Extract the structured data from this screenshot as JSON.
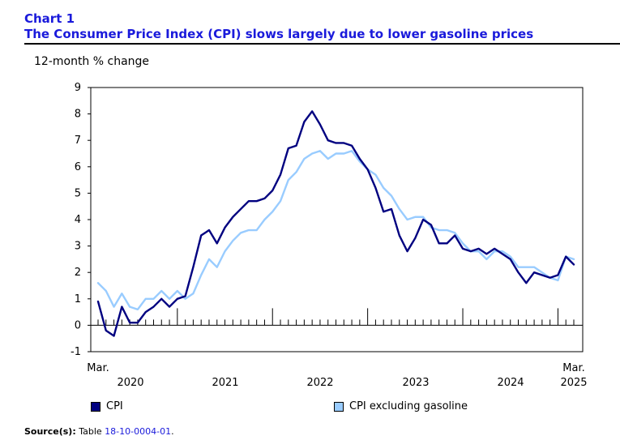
{
  "header": {
    "chart_number": "Chart 1",
    "title": "The Consumer Price Index (CPI) slows largely due to lower gasoline prices",
    "unit_label": "12-month % change"
  },
  "source": {
    "label": "Source(s):",
    "text": "Table",
    "table_id": "18-10-0004-01",
    "suffix": "."
  },
  "colors": {
    "cpi": "#000080",
    "cpi_ex_gasoline": "#99ccff",
    "title": "#1a1adb"
  },
  "chart_data": {
    "type": "line",
    "title": "The Consumer Price Index (CPI) slows largely due to lower gasoline prices",
    "ylabel": "12-month % change",
    "xlabel": "",
    "ylim": [
      -1,
      9
    ],
    "yticks": [
      "-1",
      "0",
      "1",
      "2",
      "3",
      "4",
      "5",
      "6",
      "7",
      "8",
      "9"
    ],
    "x_start": "Mar. 2020",
    "x_end": "Mar. 2025",
    "x_tick_labels": [
      {
        "label": "2020",
        "month_index": 5
      },
      {
        "label": "2021",
        "month_index": 16
      },
      {
        "label": "2022",
        "month_index": 28
      },
      {
        "label": "2023",
        "month_index": 40
      },
      {
        "label": "2024",
        "month_index": 52
      },
      {
        "label": "2025",
        "month_index": 60
      }
    ],
    "first_label": {
      "line1": "Mar.",
      "line2": ""
    },
    "last_label": {
      "line1": "Mar.",
      "line2": "2025"
    },
    "series": [
      {
        "name": "CPI",
        "color": "#000080",
        "values": [
          0.9,
          -0.2,
          -0.4,
          0.7,
          0.1,
          0.1,
          0.5,
          0.7,
          1.0,
          0.7,
          1.0,
          1.1,
          2.2,
          3.4,
          3.6,
          3.1,
          3.7,
          4.1,
          4.4,
          4.7,
          4.7,
          4.8,
          5.1,
          5.7,
          6.7,
          6.8,
          7.7,
          8.1,
          7.6,
          7.0,
          6.9,
          6.9,
          6.8,
          6.3,
          5.9,
          5.2,
          4.3,
          4.4,
          3.4,
          2.8,
          3.3,
          4.0,
          3.8,
          3.1,
          3.1,
          3.4,
          2.9,
          2.8,
          2.9,
          2.7,
          2.9,
          2.7,
          2.5,
          2.0,
          1.6,
          2.0,
          1.9,
          1.8,
          1.9,
          2.6,
          2.3
        ]
      },
      {
        "name": "CPI excluding gasoline",
        "color": "#99ccff",
        "values": [
          1.6,
          1.3,
          0.7,
          1.2,
          0.7,
          0.6,
          1.0,
          1.0,
          1.3,
          1.0,
          1.3,
          1.0,
          1.2,
          1.9,
          2.5,
          2.2,
          2.8,
          3.2,
          3.5,
          3.6,
          3.6,
          4.0,
          4.3,
          4.7,
          5.5,
          5.8,
          6.3,
          6.5,
          6.6,
          6.3,
          6.5,
          6.5,
          6.6,
          6.2,
          5.9,
          5.7,
          5.2,
          4.9,
          4.4,
          4.0,
          4.1,
          4.1,
          3.7,
          3.6,
          3.6,
          3.5,
          3.1,
          2.8,
          2.8,
          2.5,
          2.8,
          2.8,
          2.6,
          2.2,
          2.2,
          2.2,
          2.0,
          1.8,
          1.7,
          2.6,
          2.5
        ]
      }
    ],
    "legend": [
      "CPI",
      "CPI excluding gasoline"
    ],
    "legend_position": "bottom"
  }
}
